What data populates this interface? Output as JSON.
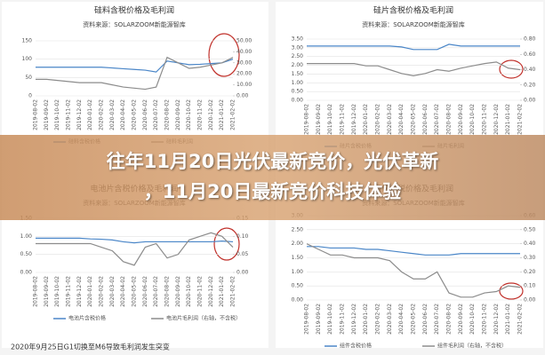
{
  "overlay_title": [
    "往年11月20日光伏最新竞价，光伏革新",
    "，11月20日最新竞价科技体验"
  ],
  "chart_data": [
    {
      "type": "line",
      "title": "硅料含税价格及毛利润",
      "subtitle": "资料来源：SOLARZOOM新能源智库",
      "categories": [
        "2019-08-02",
        "2019-09-02",
        "2019-10-02",
        "2019-11-02",
        "2019-12-02",
        "2020-01-02",
        "2020-02-02",
        "2020-03-02",
        "2020-04-02",
        "2020-05-02",
        "2020-06-02",
        "2020-07-02",
        "2020-08-02",
        "2020-09-02",
        "2020-10-02",
        "2020-11-02",
        "2020-12-02",
        "2021-01-02",
        "2021-02-02"
      ],
      "ylim": [
        0,
        150
      ],
      "yticks": [
        0,
        50,
        100,
        150
      ],
      "y2lim": [
        0,
        50
      ],
      "y2ticks": [
        {
          "value": 0,
          "label": "0.00"
        },
        {
          "value": 10,
          "label": "10.00"
        },
        {
          "value": 20,
          "label": "20.00"
        },
        {
          "value": 30,
          "label": "30.00"
        },
        {
          "value": 40,
          "label": "40.00"
        },
        {
          "value": 50,
          "label": "50.00"
        }
      ],
      "series": [
        {
          "name": "硅料含税价格",
          "color": "#4a86c8",
          "values": [
            78,
            78,
            78,
            78,
            78,
            78,
            78,
            76,
            74,
            72,
            70,
            65,
            95,
            90,
            85,
            86,
            88,
            90,
            100
          ]
        },
        {
          "name": "硅料毛利润",
          "color": "#8c8c8c",
          "axis": "y2",
          "values": [
            15,
            15,
            14,
            13,
            12,
            12,
            12,
            10,
            8,
            7,
            6,
            8,
            35,
            30,
            25,
            26,
            28,
            30,
            35
          ]
        }
      ]
    },
    {
      "type": "line",
      "title": "硅片含税价格及毛利润",
      "subtitle": "资料来源：SOLARZOOM新能源智库",
      "categories": [
        "2019-08-02",
        "2019-09-02",
        "2019-10-02",
        "2019-11-02",
        "2019-12-02",
        "2020-01-02",
        "2020-02-02",
        "2020-03-02",
        "2020-04-02",
        "2020-05-02",
        "2020-06-02",
        "2020-07-02",
        "2020-08-02",
        "2020-09-02",
        "2020-10-02",
        "2020-11-02",
        "2020-12-02",
        "2021-01-02",
        "2021-02-02"
      ],
      "ylim": [
        0,
        3.5
      ],
      "yticks": [
        {
          "value": 0,
          "label": "0.00"
        },
        {
          "value": 0.5,
          "label": "0.50"
        },
        {
          "value": 1,
          "label": "1.00"
        },
        {
          "value": 1.5,
          "label": "1.50"
        },
        {
          "value": 2,
          "label": "2.00"
        },
        {
          "value": 2.5,
          "label": "2.50"
        },
        {
          "value": 3,
          "label": "3.00"
        },
        {
          "value": 3.5,
          "label": "3.50"
        }
      ],
      "y2lim": [
        0,
        0.8
      ],
      "y2ticks": [
        {
          "value": 0,
          "label": "0.00"
        },
        {
          "value": 0.2,
          "label": "0.20"
        },
        {
          "value": 0.4,
          "label": "0.40"
        },
        {
          "value": 0.6,
          "label": "0.60"
        },
        {
          "value": 0.8,
          "label": "0.80"
        }
      ],
      "series": [
        {
          "name": "硅片含税价格",
          "color": "#4a86c8",
          "values": [
            3.1,
            3.1,
            3.1,
            3.1,
            3.1,
            3.1,
            3.1,
            3.1,
            3.05,
            2.9,
            2.9,
            2.9,
            3.2,
            3.1,
            3.1,
            3.1,
            3.1,
            3.1,
            3.1
          ]
        },
        {
          "name": "硅片毛利润",
          "color": "#8c8c8c",
          "axis": "y2",
          "values": [
            0.48,
            0.48,
            0.48,
            0.48,
            0.48,
            0.45,
            0.45,
            0.4,
            0.35,
            0.32,
            0.35,
            0.4,
            0.38,
            0.42,
            0.45,
            0.48,
            0.5,
            0.42,
            0.4
          ]
        }
      ]
    },
    {
      "type": "line",
      "title": "电池片含税价格及毛利润",
      "subtitle": "资料来源：SOLARZOOM新能源智库",
      "annotation": "2020年9月25日G1切换至M6导致毛利润发生突变",
      "categories": [
        "2019-08-02",
        "2019-09-02",
        "2019-10-02",
        "2019-11-02",
        "2019-12-02",
        "2020-01-02",
        "2020-02-02",
        "2020-03-02",
        "2020-04-02",
        "2020-05-02",
        "2020-06-02",
        "2020-07-02",
        "2020-08-02",
        "2020-09-02",
        "2020-10-02",
        "2020-11-02",
        "2020-12-02",
        "2021-01-02",
        "2021-02-02"
      ],
      "ylim": [
        0,
        1.5
      ],
      "yticks": [
        {
          "value": 0,
          "label": "0.00"
        },
        {
          "value": 0.5,
          "label": "0.50"
        },
        {
          "value": 1,
          "label": "1.00"
        },
        {
          "value": 1.5,
          "label": "1.50"
        }
      ],
      "y2lim": [
        0,
        0.15
      ],
      "y2ticks": [
        {
          "value": 0,
          "label": "0.00"
        },
        {
          "value": 0.05,
          "label": "0.05"
        },
        {
          "value": 0.1,
          "label": "0.10"
        },
        {
          "value": 0.15,
          "label": "0.15"
        }
      ],
      "series": [
        {
          "name": "电池片含税价格",
          "color": "#4a86c8",
          "values": [
            0.95,
            0.95,
            0.95,
            0.95,
            0.95,
            0.93,
            0.92,
            0.9,
            0.85,
            0.82,
            0.85,
            0.85,
            0.85,
            0.85,
            0.85,
            0.85,
            0.85,
            0.87,
            0.85
          ]
        },
        {
          "name": "电池片毛利润（右轴，不含税）",
          "color": "#8c8c8c",
          "axis": "y2",
          "values": [
            0.08,
            0.08,
            0.08,
            0.08,
            0.08,
            0.08,
            0.07,
            0.06,
            0.03,
            0.02,
            0.07,
            0.08,
            0.04,
            0.05,
            0.09,
            0.1,
            0.11,
            0.1,
            0.07
          ]
        }
      ]
    },
    {
      "type": "line",
      "title": "组件含税价格及毛利润",
      "subtitle": "资料来源：SOLARZOOM新能源智库",
      "categories": [
        "2019-08-02",
        "2019-09-02",
        "2019-10-02",
        "2019-11-02",
        "2019-12-02",
        "2020-01-02",
        "2020-02-02",
        "2020-03-02",
        "2020-04-02",
        "2020-05-02",
        "2020-06-02",
        "2020-07-02",
        "2020-08-02",
        "2020-09-02",
        "2020-10-02",
        "2020-11-02",
        "2020-12-02",
        "2021-01-02",
        "2021-02-02"
      ],
      "ylim": [
        0,
        3
      ],
      "yticks": [
        {
          "value": 0,
          "label": "0.00"
        },
        {
          "value": 0.5,
          "label": "0.50"
        },
        {
          "value": 1,
          "label": "1.00"
        },
        {
          "value": 1.5,
          "label": "1.50"
        },
        {
          "value": 2,
          "label": "2.00"
        },
        {
          "value": 2.5,
          "label": "2.50"
        },
        {
          "value": 3,
          "label": "3.00"
        }
      ],
      "y2lim": [
        0,
        0.6
      ],
      "y2ticks": [
        {
          "value": 0,
          "label": "0.00"
        },
        {
          "value": 0.1,
          "label": "0.10"
        },
        {
          "value": 0.2,
          "label": "0.20"
        },
        {
          "value": 0.3,
          "label": "0.30"
        },
        {
          "value": 0.4,
          "label": "0.40"
        },
        {
          "value": 0.5,
          "label": "0.50"
        },
        {
          "value": 0.6,
          "label": "0.60"
        }
      ],
      "series": [
        {
          "name": "组件含税价格",
          "color": "#4a86c8",
          "values": [
            1.9,
            1.9,
            1.85,
            1.85,
            1.85,
            1.8,
            1.8,
            1.75,
            1.7,
            1.65,
            1.6,
            1.6,
            1.6,
            1.65,
            1.65,
            1.65,
            1.65,
            1.65,
            1.65
          ]
        },
        {
          "name": "组件毛利润（右轴，不含税）",
          "color": "#8c8c8c",
          "axis": "y2",
          "values": [
            0.4,
            0.36,
            0.32,
            0.32,
            0.3,
            0.3,
            0.3,
            0.28,
            0.2,
            0.15,
            0.15,
            0.2,
            0.05,
            0.02,
            0.02,
            0.05,
            0.06,
            0.1,
            0.09
          ]
        }
      ]
    }
  ]
}
